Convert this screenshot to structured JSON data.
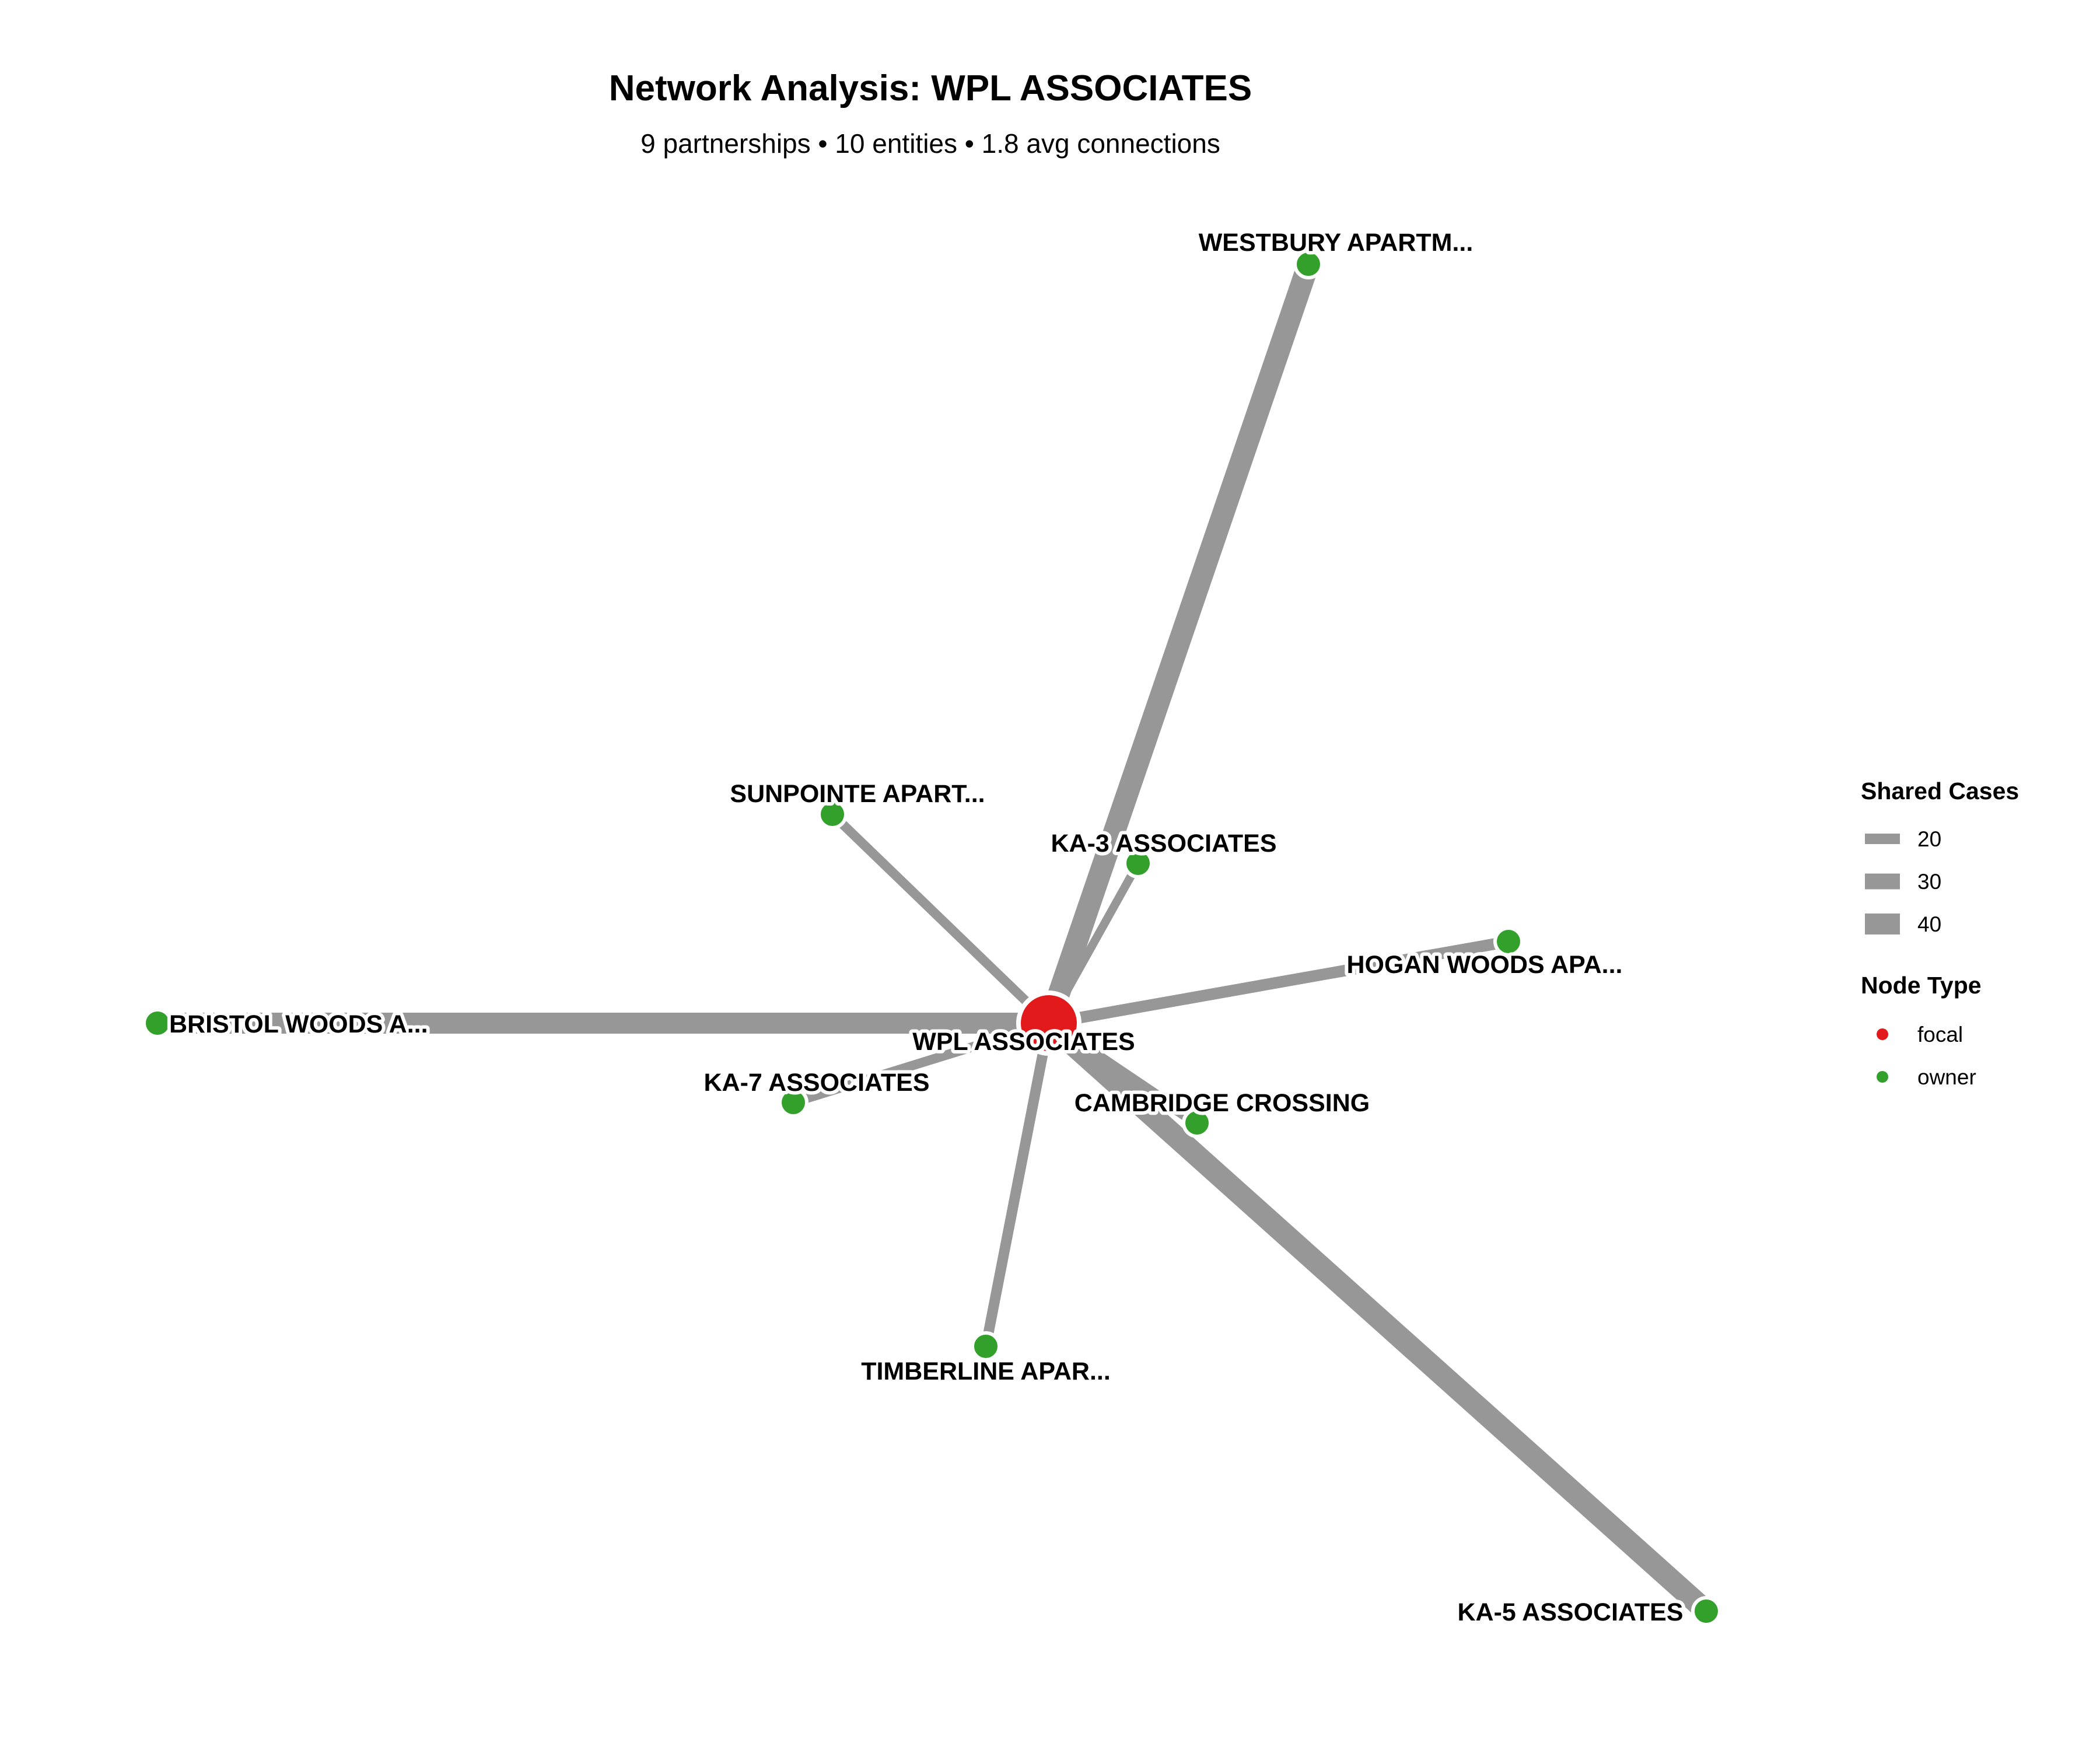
{
  "title": "Network Analysis: WPL ASSOCIATES",
  "subtitle": "9 partnerships • 10 entities • 1.8 avg connections",
  "colors": {
    "edge": "#979797",
    "focal": "#e31a1c",
    "owner": "#33a02c",
    "node_outline": "#ffffff"
  },
  "nodes": [
    {
      "id": "wpl",
      "label": "WPL ASSOCIATES",
      "type": "focal"
    },
    {
      "id": "westbury",
      "label": "WESTBURY APARTM...",
      "type": "owner"
    },
    {
      "id": "sunpointe",
      "label": "SUNPOINTE APART...",
      "type": "owner"
    },
    {
      "id": "ka3",
      "label": "KA-3 ASSOCIATES",
      "type": "owner"
    },
    {
      "id": "hogan",
      "label": "HOGAN WOODS APA...",
      "type": "owner"
    },
    {
      "id": "bristol",
      "label": "BRISTOL WOODS A...",
      "type": "owner"
    },
    {
      "id": "ka7",
      "label": "KA-7 ASSOCIATES",
      "type": "owner"
    },
    {
      "id": "cambridge",
      "label": "CAMBRIDGE CROSSING",
      "type": "owner"
    },
    {
      "id": "timberline",
      "label": "TIMBERLINE APAR...",
      "type": "owner"
    },
    {
      "id": "ka5",
      "label": "KA-5 ASSOCIATES",
      "type": "owner"
    }
  ],
  "edges": [
    {
      "from": "wpl",
      "to": "westbury",
      "shared_cases": 42
    },
    {
      "from": "wpl",
      "to": "ka5",
      "shared_cases": 42
    },
    {
      "from": "wpl",
      "to": "bristol",
      "shared_cases": 40
    },
    {
      "from": "wpl",
      "to": "sunpointe",
      "shared_cases": 18
    },
    {
      "from": "wpl",
      "to": "hogan",
      "shared_cases": 22
    },
    {
      "from": "wpl",
      "to": "timberline",
      "shared_cases": 20
    },
    {
      "from": "wpl",
      "to": "ka7",
      "shared_cases": 18
    },
    {
      "from": "wpl",
      "to": "ka3",
      "shared_cases": 16
    },
    {
      "from": "wpl",
      "to": "cambridge",
      "shared_cases": 22
    }
  ],
  "legend": {
    "edge_title": "Shared Cases",
    "edge_items": [
      {
        "label": "20",
        "value": 20
      },
      {
        "label": "30",
        "value": 30
      },
      {
        "label": "40",
        "value": 40
      }
    ],
    "node_title": "Node Type",
    "node_items": [
      {
        "label": "focal",
        "type": "focal"
      },
      {
        "label": "owner",
        "type": "owner"
      }
    ]
  }
}
